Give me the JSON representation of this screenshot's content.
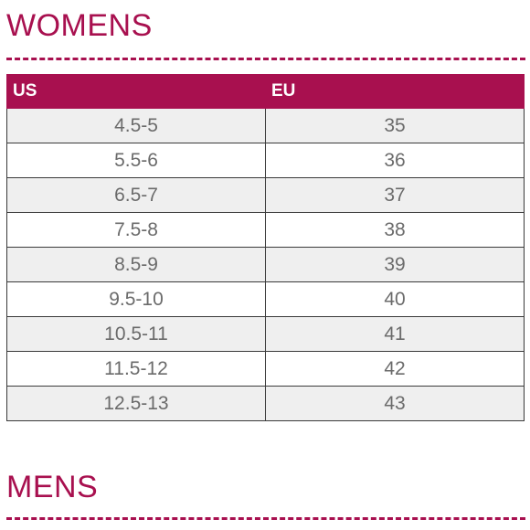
{
  "colors": {
    "accent": "#a8104f",
    "row_shaded": "#efefef",
    "row_plain": "#ffffff"
  },
  "womens": {
    "title": "WOMENS",
    "headers": [
      "US",
      "EU"
    ],
    "rows": [
      [
        "4.5-5",
        "35"
      ],
      [
        "5.5-6",
        "36"
      ],
      [
        "6.5-7",
        "37"
      ],
      [
        "7.5-8",
        "38"
      ],
      [
        "8.5-9",
        "39"
      ],
      [
        "9.5-10",
        "40"
      ],
      [
        "10.5-11",
        "41"
      ],
      [
        "11.5-12",
        "42"
      ],
      [
        "12.5-13",
        "43"
      ]
    ]
  },
  "mens": {
    "title": "MENS"
  }
}
